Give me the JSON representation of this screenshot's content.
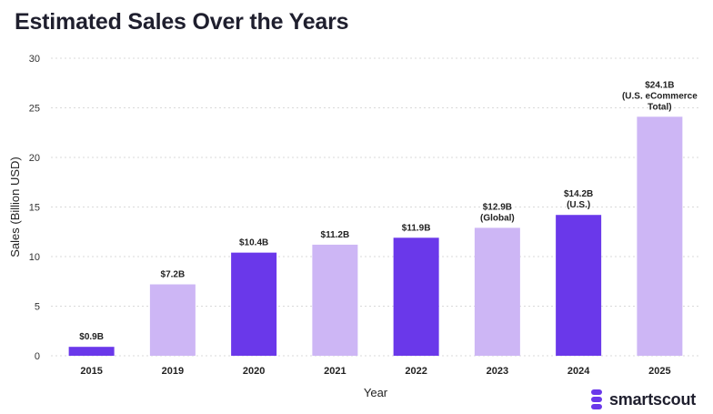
{
  "title": "Estimated Sales Over the Years",
  "brand": {
    "name": "smartscout",
    "icon": "smartscout-logo-icon"
  },
  "colors": {
    "dark": "#6a38ea",
    "light": "#cdb6f5",
    "grid": "#d9d9d9"
  },
  "chart_data": {
    "type": "bar",
    "title": "Estimated Sales Over the Years",
    "xlabel": "Year",
    "ylabel": "Sales (Billion USD)",
    "ylim": [
      0,
      30
    ],
    "yticks": [
      0,
      5,
      10,
      15,
      20,
      25,
      30
    ],
    "grid": true,
    "categories": [
      "2015",
      "2019",
      "2020",
      "2021",
      "2022",
      "2023",
      "2024",
      "2025"
    ],
    "values": [
      0.9,
      7.2,
      10.4,
      11.2,
      11.9,
      12.9,
      14.2,
      24.1
    ],
    "shades": [
      "dark",
      "light",
      "dark",
      "light",
      "dark",
      "light",
      "dark",
      "light"
    ],
    "data_labels": [
      [
        "$0.9B"
      ],
      [
        "$7.2B"
      ],
      [
        "$10.4B"
      ],
      [
        "$11.2B"
      ],
      [
        "$11.9B"
      ],
      [
        "$12.9B",
        "(Global)"
      ],
      [
        "$14.2B",
        "(U.S.)"
      ],
      [
        "$24.1B",
        "(U.S. eCommerce",
        "Total)"
      ]
    ]
  }
}
